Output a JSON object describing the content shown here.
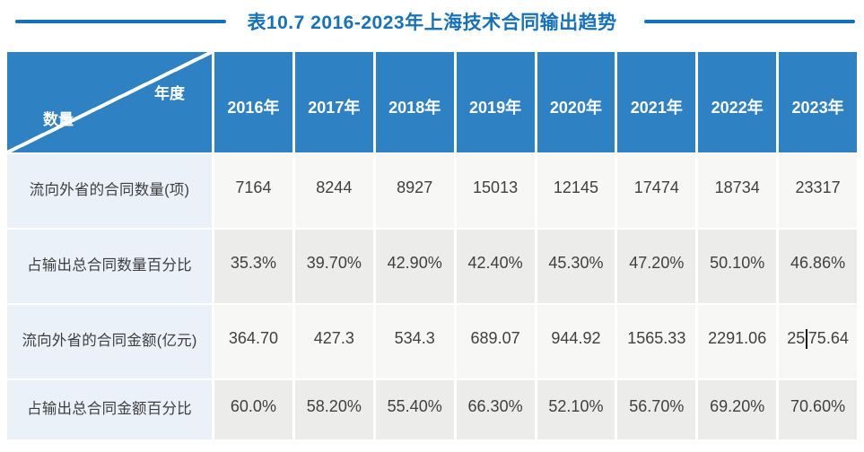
{
  "title": {
    "text": "表10.7  2016-2023年上海技术合同输出趋势"
  },
  "colors": {
    "header_blue": "#2E81C3",
    "title_blue": "#1572BB",
    "label_cell_bg": "#EAF1F9",
    "row_bg_light": "#F7F7F5",
    "row_bg_gray": "#ECECEA",
    "cell_text": "#404040"
  },
  "table": {
    "corner": {
      "top_right": "年度",
      "bottom_left": "数量"
    },
    "years": [
      "2016年",
      "2017年",
      "2018年",
      "2019年",
      "2020年",
      "2021年",
      "2022年",
      "2023年"
    ],
    "rows": [
      {
        "label": "流向外省的合同数量(项)",
        "values": [
          "7164",
          "8244",
          "8927",
          "15013",
          "12145",
          "17474",
          "18734",
          "23317"
        ]
      },
      {
        "label": "占输出总合同数量百分比",
        "values": [
          "35.3%",
          "39.70%",
          "42.90%",
          "42.40%",
          "45.30%",
          "47.20%",
          "50.10%",
          "46.86%"
        ]
      },
      {
        "label": "流向外省的合同金额(亿元)",
        "values": [
          "364.70",
          "427.3",
          "534.3",
          "689.07",
          "944.92",
          "1565.33",
          "2291.06",
          "2575.64"
        ]
      },
      {
        "label": "占输出总合同金额百分比",
        "values": [
          "60.0%",
          "58.20%",
          "55.40%",
          "66.30%",
          "52.10%",
          "56.70%",
          "69.20%",
          "70.60%"
        ]
      }
    ],
    "caret": {
      "row": 2,
      "col": 7,
      "before": "25",
      "after": "75.64"
    }
  }
}
